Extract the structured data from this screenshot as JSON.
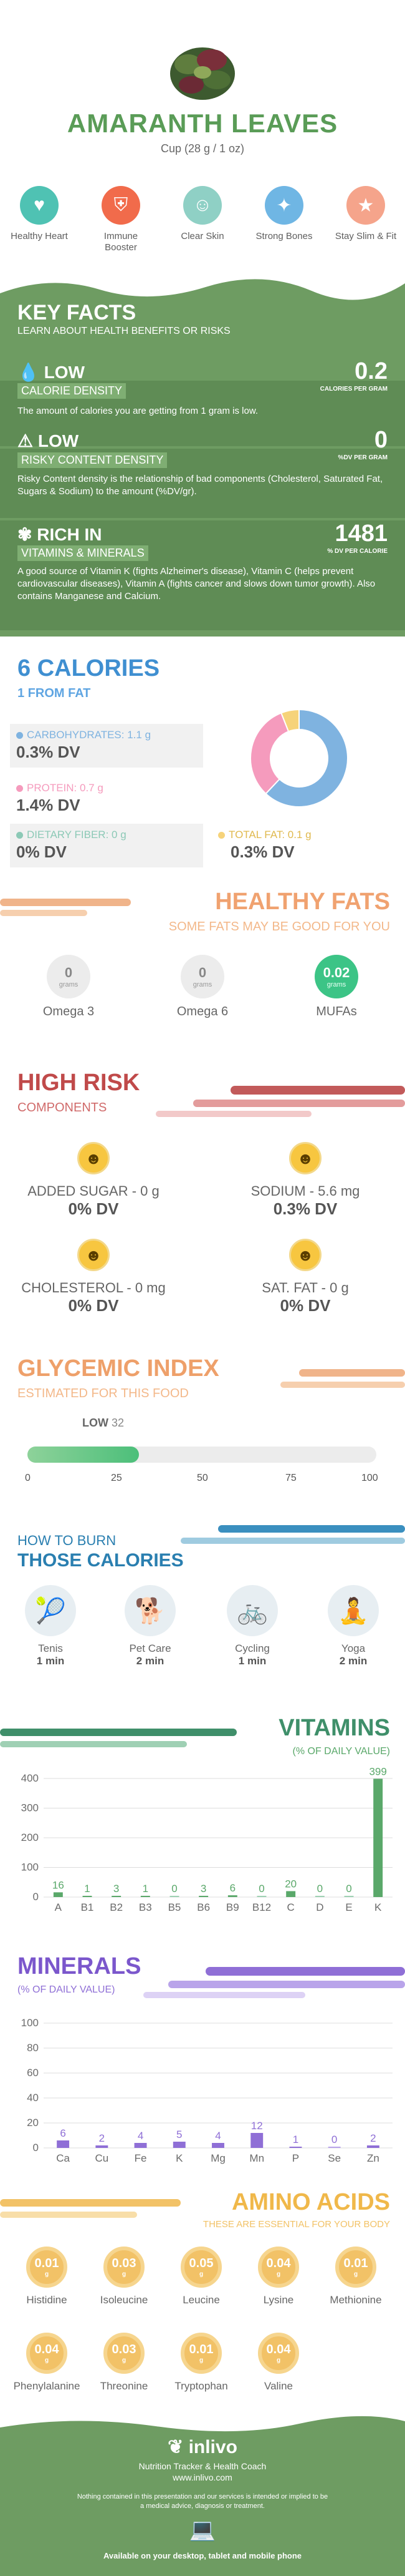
{
  "header": {
    "title": "AMARANTH LEAVES",
    "serving": "Cup (28 g / 1 oz)"
  },
  "benefits": [
    {
      "label": "Healthy Heart",
      "icon": "heart-icon",
      "color": "#4fc2b3"
    },
    {
      "label": "Immune Booster",
      "icon": "shield-icon",
      "color": "#f16b4b"
    },
    {
      "label": "Clear Skin",
      "icon": "skin-icon",
      "color": "#8fd0c5"
    },
    {
      "label": "Strong Bones",
      "icon": "bone-icon",
      "color": "#6fb6e4"
    },
    {
      "label": "Stay Slim & Fit",
      "icon": "slim-icon",
      "color": "#f5a48b"
    }
  ],
  "key_facts": {
    "title": "KEY FACTS",
    "subtitle": "LEARN ABOUT HEALTH BENEFITS OR RISKS",
    "low_calorie": {
      "level": "LOW",
      "name": "CALORIE DENSITY",
      "value": "0.2",
      "unit": "CALORIES PER GRAM",
      "desc": "The amount of calories you are getting from 1 gram is low."
    },
    "low_risky": {
      "level": "LOW",
      "name": "RISKY CONTENT DENSITY",
      "value": "0",
      "unit": "%DV PER GRAM",
      "desc": "Risky Content density is the relationship of bad components (Cholesterol, Saturated Fat, Sugars & Sodium) to the amount (%DV/gr)."
    },
    "rich": {
      "level": "RICH IN",
      "name": "VITAMINS & MINERALS",
      "value": "1481",
      "unit": "% DV PER CALORIE",
      "desc": "A good source of Vitamin K (fights Alzheimer's disease), Vitamin C (helps prevent cardiovascular diseases), Vitamin A (fights cancer and slows down tumor growth). Also contains Manganese and Calcium."
    }
  },
  "calories": {
    "title": "6 CALORIES",
    "subtitle": "1 FROM FAT",
    "carbs": {
      "label": "CARBOHYDRATES: 1.1 g",
      "dv": "0.3% DV",
      "color": "#7fb3e0"
    },
    "protein": {
      "label": "PROTEIN: 0.7 g",
      "dv": "1.4% DV",
      "color": "#f59bbd"
    },
    "fiber": {
      "label": "DIETARY FIBER: 0 g",
      "dv": "0% DV",
      "color": "#8cc9b6"
    },
    "fat": {
      "label": "TOTAL FAT: 0.1 g",
      "dv": "0.3% DV",
      "color": "#f6d37a"
    }
  },
  "chart_data": [
    {
      "type": "pie",
      "title": "",
      "categories": [
        "Carbohydrates",
        "Protein",
        "Total Fat"
      ],
      "values": [
        62,
        32,
        6
      ],
      "colors": [
        "#7fb3e0",
        "#f59bbd",
        "#f6d37a"
      ]
    },
    {
      "type": "bar",
      "title": "VITAMINS",
      "subtitle": "(% OF DAILY VALUE)",
      "categories": [
        "A",
        "B1",
        "B2",
        "B3",
        "B5",
        "B6",
        "B9",
        "B12",
        "C",
        "D",
        "E",
        "K"
      ],
      "values": [
        16,
        1,
        3,
        1,
        0,
        3,
        6,
        0,
        20,
        0,
        0,
        399
      ],
      "ylim": [
        0,
        400
      ],
      "yticks": [
        0,
        100,
        200,
        300,
        400
      ],
      "color": "#5aa86a"
    },
    {
      "type": "bar",
      "title": "MINERALS",
      "subtitle": "(% OF DAILY VALUE)",
      "categories": [
        "Ca",
        "Cu",
        "Fe",
        "K",
        "Mg",
        "Mn",
        "P",
        "Se",
        "Zn"
      ],
      "values": [
        6,
        2,
        4,
        5,
        4,
        12,
        1,
        0,
        2
      ],
      "ylim": [
        0,
        100
      ],
      "yticks": [
        0,
        20,
        40,
        60,
        80,
        100
      ],
      "color": "#8f6fd6"
    }
  ],
  "healthy_fats": {
    "title": "HEALTHY FATS",
    "subtitle": "SOME FATS MAY BE GOOD FOR YOU",
    "items": [
      {
        "value": "0",
        "unit": "grams",
        "label": "Omega 3"
      },
      {
        "value": "0",
        "unit": "grams",
        "label": "Omega 6"
      },
      {
        "value": "0.02",
        "unit": "grams",
        "label": "MUFAs"
      }
    ]
  },
  "high_risk": {
    "title": "HIGH RISK",
    "subtitle": "COMPONENTS",
    "items": [
      {
        "label": "ADDED SUGAR - 0 g",
        "dv": "0% DV"
      },
      {
        "label": "SODIUM - 5.6 mg",
        "dv": "0.3% DV"
      },
      {
        "label": "CHOLESTEROL - 0 mg",
        "dv": "0% DV"
      },
      {
        "label": "SAT. FAT - 0 g",
        "dv": "0% DV"
      }
    ]
  },
  "glycemic": {
    "title": "GLYCEMIC INDEX",
    "subtitle": "ESTIMATED FOR THIS FOOD",
    "level": "LOW",
    "value": "32",
    "fraction": 0.32,
    "ticks": [
      "0",
      "25",
      "50",
      "75",
      "100"
    ]
  },
  "burn": {
    "title_small": "HOW TO BURN",
    "title_big": "THOSE CALORIES",
    "items": [
      {
        "label": "Tenis",
        "time": "1 min",
        "icon": "tennis-icon"
      },
      {
        "label": "Pet Care",
        "time": "2 min",
        "icon": "dog-walking-icon"
      },
      {
        "label": "Cycling",
        "time": "1 min",
        "icon": "cycling-icon"
      },
      {
        "label": "Yoga",
        "time": "2 min",
        "icon": "yoga-icon"
      }
    ]
  },
  "amino": {
    "title": "AMINO ACIDS",
    "subtitle": "THESE ARE ESSENTIAL FOR YOUR BODY",
    "unit": "g",
    "items": [
      {
        "value": "0.01",
        "label": "Histidine"
      },
      {
        "value": "0.03",
        "label": "Isoleucine"
      },
      {
        "value": "0.05",
        "label": "Leucine"
      },
      {
        "value": "0.04",
        "label": "Lysine"
      },
      {
        "value": "0.01",
        "label": "Methionine"
      },
      {
        "value": "0.04",
        "label": "Phenylalanine"
      },
      {
        "value": "0.03",
        "label": "Threonine"
      },
      {
        "value": "0.01",
        "label": "Tryptophan"
      },
      {
        "value": "0.04",
        "label": "Valine"
      }
    ]
  },
  "footer": {
    "brand": "inlivo",
    "tagline": "Nutrition Tracker & Health Coach",
    "url": "www.inlivo.com",
    "disclaimer": "Nothing contained in this presentation and our services is intended or implied to be a medical advice, diagnosis or treatment.",
    "available": "Available on your desktop, tablet and mobile phone"
  }
}
